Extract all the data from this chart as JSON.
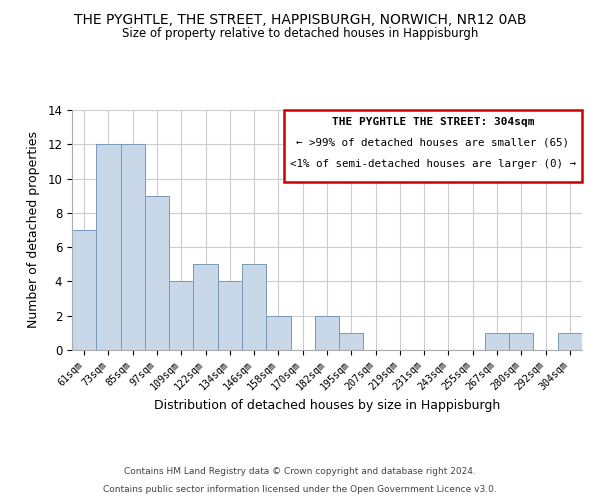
{
  "title": "THE PYGHTLE, THE STREET, HAPPISBURGH, NORWICH, NR12 0AB",
  "subtitle": "Size of property relative to detached houses in Happisburgh",
  "xlabel": "Distribution of detached houses by size in Happisburgh",
  "ylabel": "Number of detached properties",
  "bar_color": "#c8d8e8",
  "bar_edge_color": "#7799bb",
  "categories": [
    "61sqm",
    "73sqm",
    "85sqm",
    "97sqm",
    "109sqm",
    "122sqm",
    "134sqm",
    "146sqm",
    "158sqm",
    "170sqm",
    "182sqm",
    "195sqm",
    "207sqm",
    "219sqm",
    "231sqm",
    "243sqm",
    "255sqm",
    "267sqm",
    "280sqm",
    "292sqm",
    "304sqm"
  ],
  "values": [
    7,
    12,
    12,
    9,
    4,
    5,
    4,
    5,
    2,
    0,
    2,
    1,
    0,
    0,
    0,
    0,
    0,
    1,
    1,
    0,
    1
  ],
  "ylim": [
    0,
    14
  ],
  "yticks": [
    0,
    2,
    4,
    6,
    8,
    10,
    12,
    14
  ],
  "legend_title": "THE PYGHTLE THE STREET: 304sqm",
  "legend_line1": "← >99% of detached houses are smaller (65)",
  "legend_line2": "<1% of semi-detached houses are larger (0) →",
  "legend_box_color": "#ffffff",
  "legend_box_edge_color": "#cc0000",
  "footer_line1": "Contains HM Land Registry data © Crown copyright and database right 2024.",
  "footer_line2": "Contains public sector information licensed under the Open Government Licence v3.0.",
  "background_color": "#ffffff",
  "grid_color": "#cccccc"
}
